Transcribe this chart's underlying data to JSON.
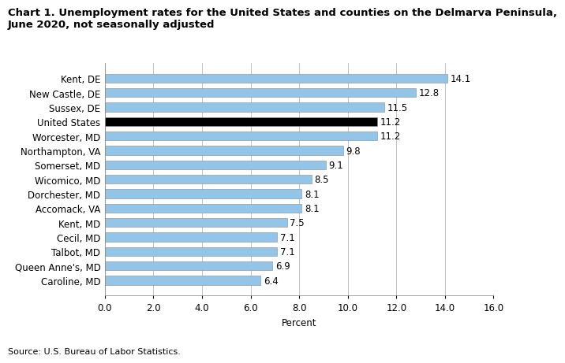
{
  "title_line1": "Chart 1. Unemployment rates for the United States and counties on the Delmarva Peninsula,",
  "title_line2": "June 2020, not seasonally adjusted",
  "categories": [
    "Caroline, MD",
    "Queen Anne's, MD",
    "Talbot, MD",
    "Cecil, MD",
    "Kent, MD",
    "Accomack, VA",
    "Dorchester, MD",
    "Wicomico, MD",
    "Somerset, MD",
    "Northampton, VA",
    "Worcester, MD",
    "United States",
    "Sussex, DE",
    "New Castle, DE",
    "Kent, DE"
  ],
  "values": [
    6.4,
    6.9,
    7.1,
    7.1,
    7.5,
    8.1,
    8.1,
    8.5,
    9.1,
    9.8,
    11.2,
    11.2,
    11.5,
    12.8,
    14.1
  ],
  "bar_colors": [
    "#92C5E8",
    "#92C5E8",
    "#92C5E8",
    "#92C5E8",
    "#92C5E8",
    "#92C5E8",
    "#92C5E8",
    "#92C5E8",
    "#92C5E8",
    "#92C5E8",
    "#92C5E8",
    "#000000",
    "#92C5E8",
    "#92C5E8",
    "#92C5E8"
  ],
  "xlabel": "Percent",
  "xlim": [
    0,
    16.0
  ],
  "xticks": [
    0.0,
    2.0,
    4.0,
    6.0,
    8.0,
    10.0,
    12.0,
    14.0,
    16.0
  ],
  "xtick_labels": [
    "0.0",
    "2.0",
    "4.0",
    "6.0",
    "8.0",
    "10.0",
    "12.0",
    "14.0",
    "16.0"
  ],
  "source": "Source: U.S. Bureau of Labor Statistics.",
  "title_fontsize": 9.5,
  "label_fontsize": 8.5,
  "value_fontsize": 8.5,
  "bar_height": 0.62
}
